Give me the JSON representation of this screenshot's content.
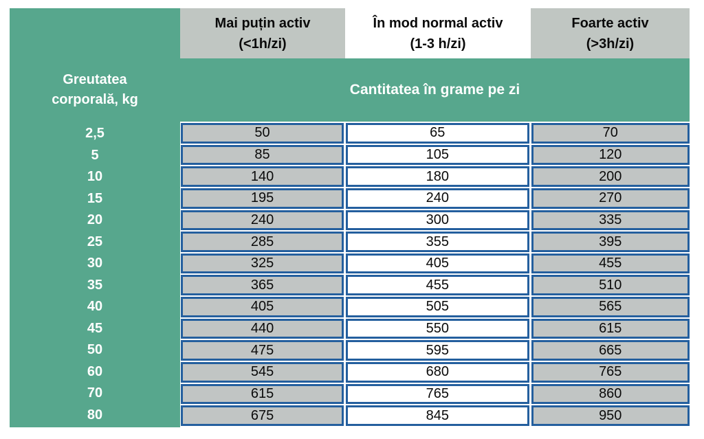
{
  "colors": {
    "green": "#57A78D",
    "header_gray": "#C0C6C2",
    "cell_gray": "#C1C5C4",
    "border_blue": "#245F9E",
    "text_dark": "#0a0a0a",
    "text_white": "#FFFFFF",
    "page_background": "#FFFFFF"
  },
  "table": {
    "row_header_line1": "Greutatea",
    "row_header_line2": "corporală, kg",
    "banner": "Cantitatea în grame pe zi",
    "columns": [
      {
        "line1": "Mai puțin activ",
        "line2": "(<1h/zi)",
        "bg": "gray"
      },
      {
        "line1": "În mod normal activ",
        "line2": "(1-3 h/zi)",
        "bg": "white"
      },
      {
        "line1": "Foarte activ",
        "line2": "(>3h/zi)",
        "bg": "gray"
      }
    ],
    "rows": [
      {
        "weight": "2,5",
        "values": [
          "50",
          "65",
          "70"
        ]
      },
      {
        "weight": "5",
        "values": [
          "85",
          "105",
          "120"
        ]
      },
      {
        "weight": "10",
        "values": [
          "140",
          "180",
          "200"
        ]
      },
      {
        "weight": "15",
        "values": [
          "195",
          "240",
          "270"
        ]
      },
      {
        "weight": "20",
        "values": [
          "240",
          "300",
          "335"
        ]
      },
      {
        "weight": "25",
        "values": [
          "285",
          "355",
          "395"
        ]
      },
      {
        "weight": "30",
        "values": [
          "325",
          "405",
          "455"
        ]
      },
      {
        "weight": "35",
        "values": [
          "365",
          "455",
          "510"
        ]
      },
      {
        "weight": "40",
        "values": [
          "405",
          "505",
          "565"
        ]
      },
      {
        "weight": "45",
        "values": [
          "440",
          "550",
          "615"
        ]
      },
      {
        "weight": "50",
        "values": [
          "475",
          "595",
          "665"
        ]
      },
      {
        "weight": "60",
        "values": [
          "545",
          "680",
          "765"
        ]
      },
      {
        "weight": "70",
        "values": [
          "615",
          "765",
          "860"
        ]
      },
      {
        "weight": "80",
        "values": [
          "675",
          "845",
          "950"
        ]
      }
    ]
  },
  "chart_data": {
    "type": "table",
    "title": "Cantitatea în grame pe zi",
    "row_label": "Greutatea corporală, kg",
    "columns": [
      "Mai puțin activ (<1h/zi)",
      "În mod normal activ (1-3 h/zi)",
      "Foarte activ (>3h/zi)"
    ],
    "weights_kg": [
      2.5,
      5,
      10,
      15,
      20,
      25,
      30,
      35,
      40,
      45,
      50,
      60,
      70,
      80
    ],
    "series": [
      {
        "name": "Mai puțin activ (<1h/zi)",
        "values": [
          50,
          85,
          140,
          195,
          240,
          285,
          325,
          365,
          405,
          440,
          475,
          545,
          615,
          675
        ]
      },
      {
        "name": "În mod normal activ (1-3 h/zi)",
        "values": [
          65,
          105,
          180,
          240,
          300,
          355,
          405,
          455,
          505,
          550,
          595,
          680,
          765,
          845
        ]
      },
      {
        "name": "Foarte activ (>3h/zi)",
        "values": [
          70,
          120,
          200,
          270,
          335,
          395,
          455,
          510,
          565,
          615,
          665,
          765,
          860,
          950
        ]
      }
    ]
  }
}
